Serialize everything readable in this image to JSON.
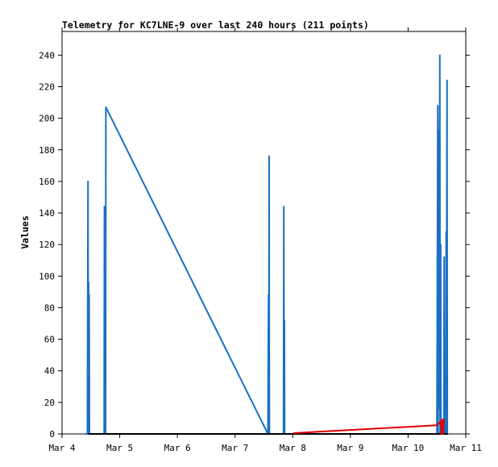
{
  "chart_data": {
    "type": "line",
    "title": "Telemetry for KC7LNE-9 over last 240 hours (211 points)",
    "xlabel": "",
    "ylabel": "Values",
    "x_unit": "days since Mar 4 00:00",
    "xlim": [
      0,
      7
    ],
    "ylim": [
      0,
      255
    ],
    "x_ticks": [
      {
        "x": 0,
        "label": "Mar 4"
      },
      {
        "x": 1,
        "label": "Mar 5"
      },
      {
        "x": 2,
        "label": "Mar 6"
      },
      {
        "x": 3,
        "label": "Mar 7"
      },
      {
        "x": 4,
        "label": "Mar 8"
      },
      {
        "x": 5,
        "label": "Mar 9"
      },
      {
        "x": 6,
        "label": "Mar 10"
      },
      {
        "x": 7,
        "label": "Mar 11"
      }
    ],
    "y_ticks": [
      0,
      20,
      40,
      60,
      80,
      100,
      120,
      140,
      160,
      180,
      200,
      220,
      240
    ],
    "grid": false,
    "series": [
      {
        "name": "",
        "color": "#1a6fc4",
        "points": [
          [
            0.4,
            0
          ],
          [
            0.44,
            0
          ],
          [
            0.45,
            160
          ],
          [
            0.455,
            0
          ],
          [
            0.46,
            96
          ],
          [
            0.465,
            0
          ],
          [
            0.47,
            88
          ],
          [
            0.475,
            0
          ],
          [
            0.5,
            0
          ],
          [
            0.73,
            0
          ],
          [
            0.735,
            144
          ],
          [
            0.74,
            0
          ],
          [
            0.75,
            144
          ],
          [
            0.755,
            0
          ],
          [
            0.76,
            207
          ],
          [
            3.57,
            0
          ],
          [
            3.58,
            88
          ],
          [
            3.585,
            0
          ],
          [
            3.59,
            176
          ],
          [
            3.595,
            0
          ],
          [
            3.84,
            0
          ],
          [
            3.845,
            144
          ],
          [
            3.85,
            0
          ],
          [
            3.855,
            72
          ],
          [
            3.86,
            0
          ],
          [
            6.5,
            0
          ],
          [
            6.515,
            208
          ],
          [
            6.52,
            0
          ],
          [
            6.535,
            192
          ],
          [
            6.54,
            16
          ],
          [
            6.55,
            240
          ],
          [
            6.555,
            0
          ],
          [
            6.565,
            120
          ],
          [
            6.57,
            0
          ],
          [
            6.58,
            0
          ],
          [
            6.585,
            8
          ],
          [
            6.59,
            0
          ],
          [
            6.6,
            8
          ],
          [
            6.605,
            0
          ],
          [
            6.62,
            0
          ],
          [
            6.625,
            112
          ],
          [
            6.63,
            0
          ],
          [
            6.655,
            0
          ],
          [
            6.66,
            128
          ],
          [
            6.665,
            0
          ],
          [
            6.675,
            224
          ],
          [
            6.68,
            0
          ],
          [
            6.69,
            0
          ]
        ]
      },
      {
        "name": "",
        "color": "#000000",
        "points": [
          [
            0.45,
            0
          ],
          [
            6.69,
            0
          ]
        ]
      },
      {
        "name": "",
        "color": "#e00000",
        "points": [
          [
            4.01,
            0.5
          ],
          [
            4.5,
            1.5
          ],
          [
            5,
            2.5
          ],
          [
            5.5,
            3.5
          ],
          [
            6,
            4.5
          ],
          [
            6.5,
            5.5
          ],
          [
            6.57,
            8
          ],
          [
            6.575,
            0
          ],
          [
            6.58,
            9
          ],
          [
            6.6,
            9
          ],
          [
            6.61,
            0
          ],
          [
            6.62,
            9
          ],
          [
            6.64,
            9
          ]
        ]
      }
    ]
  }
}
